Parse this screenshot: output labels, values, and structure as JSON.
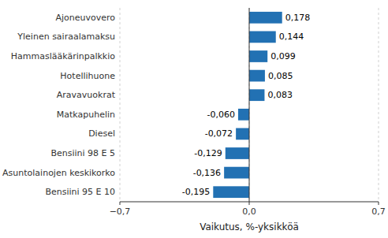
{
  "chart_data": {
    "type": "bar",
    "orientation": "horizontal",
    "categories": [
      "Bensiini 95 E 10",
      "Asuntolainojen keskikorko",
      "Bensiini 98 E 5",
      "Diesel",
      "Matkapuhelin",
      "Aravavuokrat",
      "Hotellihuone",
      "Hammaslääkärinpalkkio",
      "Yleinen sairaalamaksu",
      "Ajoneuvovero"
    ],
    "values": [
      -0.195,
      -0.136,
      -0.129,
      -0.072,
      -0.06,
      0.083,
      0.085,
      0.099,
      0.144,
      0.178
    ],
    "value_labels": [
      "-0,195",
      "-0,136",
      "-0,129",
      "-0,072",
      "-0,060",
      "0,083",
      "0,085",
      "0,099",
      "0,144",
      "0,178"
    ],
    "data_labels": true,
    "color": "#2271b3",
    "xlabel": "Vaikutus, %-yksikköä",
    "xlim": [
      -0.7,
      0.7
    ],
    "xticks": [
      {
        "value": -0.7,
        "label": "−0,7"
      },
      {
        "value": 0.0,
        "label": "0,0"
      },
      {
        "value": 0.7,
        "label": "0,7"
      }
    ],
    "grid": true
  }
}
